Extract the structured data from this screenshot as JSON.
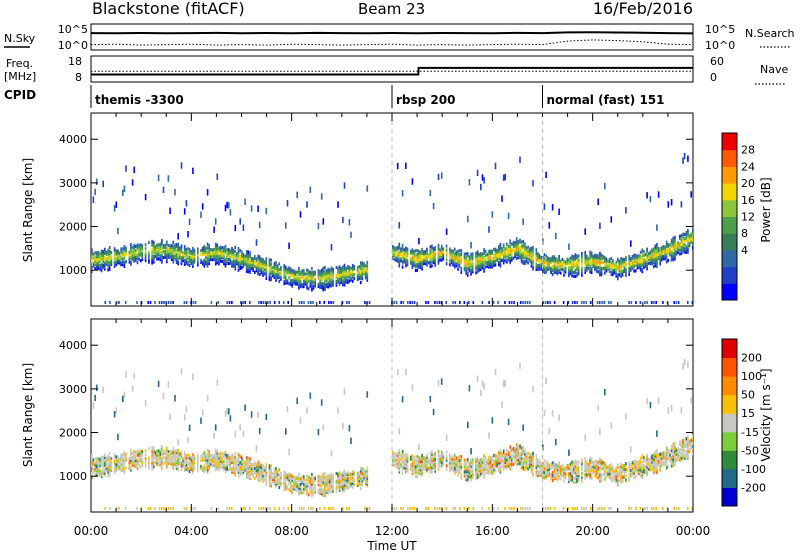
{
  "header": {
    "station": "Blackstone (fitACF)",
    "beam": "Beam 23",
    "date": "16/Feb/2016"
  },
  "chart_data": [
    {
      "type": "line",
      "name": "noise-panel",
      "left_label": "N.Sky",
      "right_label": "N.Search",
      "left_ticks": [
        "10^5",
        "10^0"
      ],
      "right_ticks": [
        "10^5",
        "10^0"
      ],
      "yscale": "log",
      "ylim": [
        1,
        100000
      ],
      "x_hours": [
        0,
        1,
        2,
        3,
        4,
        5,
        6,
        7,
        8,
        9,
        10,
        11,
        12,
        13,
        14,
        15,
        16,
        17,
        18,
        19,
        20,
        21,
        22,
        23,
        24
      ],
      "series": [
        {
          "name": "N.Sky",
          "style": "solid",
          "values": [
            3000,
            2800,
            3200,
            2600,
            3000,
            3400,
            2900,
            3100,
            2700,
            3300,
            3000,
            2800,
            3200,
            2900,
            3100,
            3000,
            2800,
            3300,
            3000,
            4500,
            5000,
            4200,
            3800,
            3000,
            2500
          ]
        },
        {
          "name": "N.Search",
          "style": "dotted",
          "values": [
            4,
            5,
            3,
            4,
            5,
            3,
            4,
            3,
            5,
            4,
            3,
            4,
            5,
            3,
            4,
            3,
            4,
            5,
            4,
            30,
            60,
            40,
            20,
            5,
            4
          ]
        }
      ]
    },
    {
      "type": "line",
      "name": "freq-nave-panel",
      "left_label": "Freq. [MHz]",
      "right_label": "Nave",
      "left_ticks": [
        "18",
        "8"
      ],
      "right_ticks": [
        "60",
        "0"
      ],
      "ylim_freq": [
        8,
        18
      ],
      "ylim_nave": [
        0,
        60
      ],
      "x_hours": [
        0,
        4,
        8,
        12,
        13.05,
        13.06,
        16,
        20,
        24
      ],
      "series": [
        {
          "name": "Freq.",
          "style": "solid",
          "values": [
            10.5,
            10.5,
            10.5,
            10.5,
            10.5,
            13.5,
            13.5,
            13.5,
            13.5
          ]
        },
        {
          "name": "Nave",
          "style": "dotted",
          "values": [
            24,
            24,
            24,
            24,
            24,
            24,
            24,
            24,
            24
          ]
        }
      ]
    },
    {
      "type": "table",
      "name": "cpid",
      "label": "CPID",
      "segments": [
        {
          "start_hour": 0,
          "text": "themis -3300"
        },
        {
          "start_hour": 12,
          "text": "rbsp 200"
        },
        {
          "start_hour": 18,
          "text": "normal (fast) 151"
        }
      ]
    },
    {
      "type": "heatmap",
      "name": "power",
      "ylabel": "Slant Range [km]",
      "yticks": [
        1000,
        2000,
        3000,
        4000
      ],
      "ylim": [
        180,
        4600
      ],
      "xlim": [
        0,
        24
      ],
      "colorbar_label": "Power [dB]",
      "colorbar_ticks": [
        "28",
        "24",
        "20",
        "16",
        "12",
        "8",
        "4"
      ],
      "colorbar_colors": [
        "#0000ff",
        "#2040c8",
        "#2e6aa8",
        "#3a7d5a",
        "#4aa04a",
        "#8cc63a",
        "#f4d400",
        "#ff9a00",
        "#ff5a00",
        "#ee0000"
      ],
      "bands": [
        {
          "x": [
            0,
            1,
            2,
            3,
            4,
            5,
            6,
            7,
            8,
            9,
            10,
            11
          ],
          "y": [
            1280,
            1350,
            1480,
            1500,
            1350,
            1450,
            1300,
            1100,
            900,
            850,
            950,
            1050
          ],
          "value": 22
        },
        {
          "x": [
            12,
            13,
            14,
            15,
            16,
            17,
            18,
            19,
            20,
            21,
            22,
            23,
            24
          ],
          "y": [
            1450,
            1300,
            1450,
            1200,
            1350,
            1550,
            1200,
            1150,
            1250,
            1100,
            1300,
            1500,
            1800
          ],
          "value": 24
        }
      ]
    },
    {
      "type": "heatmap",
      "name": "velocity",
      "ylabel": "Slant Range [km]",
      "yticks": [
        1000,
        2000,
        3000,
        4000
      ],
      "ylim": [
        180,
        4600
      ],
      "xlim": [
        0,
        24
      ],
      "xticks": [
        "00:00",
        "04:00",
        "08:00",
        "12:00",
        "16:00",
        "20:00",
        "00:00"
      ],
      "xlabel": "Time UT",
      "colorbar_label": "Velocity [m s⁻¹]",
      "colorbar_ticks": [
        "200",
        "100",
        "50",
        "15",
        "-15",
        "-50",
        "-100",
        "-200"
      ],
      "colorbar_colors": [
        "#0000d0",
        "#1f6a8a",
        "#2e8b3a",
        "#7ccd3c",
        "#c8c8c0",
        "#f7c000",
        "#ff8c00",
        "#ff5500",
        "#e00000"
      ],
      "bands": [
        {
          "x": [
            0,
            1,
            2,
            3,
            4,
            5,
            6,
            7,
            8,
            9,
            10,
            11
          ],
          "y": [
            1280,
            1350,
            1480,
            1500,
            1350,
            1450,
            1300,
            1100,
            900,
            850,
            950,
            1050
          ],
          "value": -40
        },
        {
          "x": [
            12,
            13,
            14,
            15,
            16,
            17,
            18,
            19,
            20,
            21,
            22,
            23,
            24
          ],
          "y": [
            1450,
            1300,
            1450,
            1200,
            1350,
            1550,
            1200,
            1150,
            1250,
            1100,
            1300,
            1500,
            1800
          ],
          "value": 0
        }
      ]
    }
  ]
}
